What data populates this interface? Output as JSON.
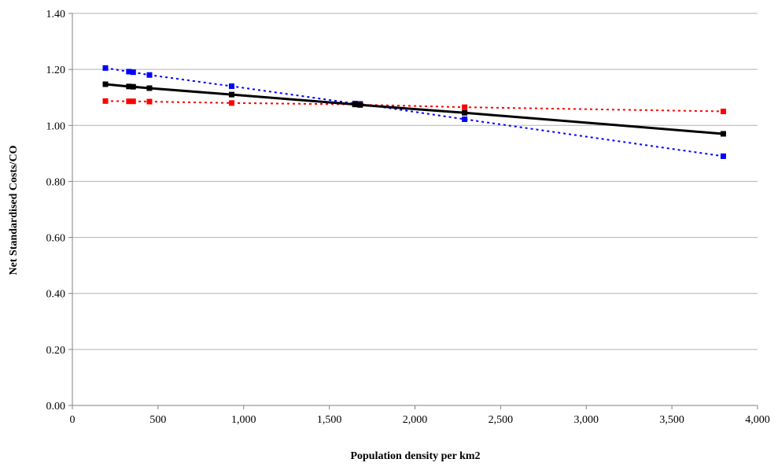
{
  "chart_data": {
    "type": "line",
    "title": "",
    "xlabel": "Population density per km2",
    "ylabel": "Net Standardised Costs/CO",
    "xlim": [
      0,
      4000
    ],
    "ylim": [
      0,
      1.4
    ],
    "x_ticks": [
      0,
      500,
      1000,
      1500,
      2000,
      2500,
      3000,
      3500,
      4000
    ],
    "x_tick_labels": [
      "0",
      "500",
      "1,000",
      "1,500",
      "2,000",
      "2,500",
      "3,000",
      "3,500",
      "4,000"
    ],
    "y_ticks": [
      0,
      0.2,
      0.4,
      0.6,
      0.8,
      1.0,
      1.2,
      1.4
    ],
    "y_tick_labels": [
      "0.00",
      "0.20",
      "0.40",
      "0.60",
      "0.80",
      "1.00",
      "1.20",
      "1.40"
    ],
    "grid": "horizontal",
    "legend": "none",
    "series": [
      {
        "color": "#0000ff",
        "line_style": "dotted",
        "marker": "square",
        "points": [
          [
            193,
            1.205
          ],
          [
            330,
            1.192
          ],
          [
            355,
            1.19
          ],
          [
            450,
            1.18
          ],
          [
            930,
            1.14
          ],
          [
            1650,
            1.078
          ],
          [
            1680,
            1.077
          ],
          [
            2290,
            1.022
          ],
          [
            3800,
            0.89
          ]
        ]
      },
      {
        "color": "#ff0000",
        "line_style": "dotted",
        "marker": "square",
        "points": [
          [
            193,
            1.087
          ],
          [
            330,
            1.086
          ],
          [
            355,
            1.086
          ],
          [
            450,
            1.085
          ],
          [
            930,
            1.08
          ],
          [
            1650,
            1.075
          ],
          [
            1680,
            1.074
          ],
          [
            2290,
            1.065
          ],
          [
            3800,
            1.05
          ]
        ]
      },
      {
        "color": "#000000",
        "line_style": "solid",
        "marker": "square",
        "points": [
          [
            193,
            1.147
          ],
          [
            330,
            1.139
          ],
          [
            355,
            1.138
          ],
          [
            450,
            1.133
          ],
          [
            930,
            1.11
          ],
          [
            1650,
            1.075
          ],
          [
            1680,
            1.073
          ],
          [
            2290,
            1.045
          ],
          [
            3800,
            0.97
          ]
        ]
      }
    ]
  }
}
